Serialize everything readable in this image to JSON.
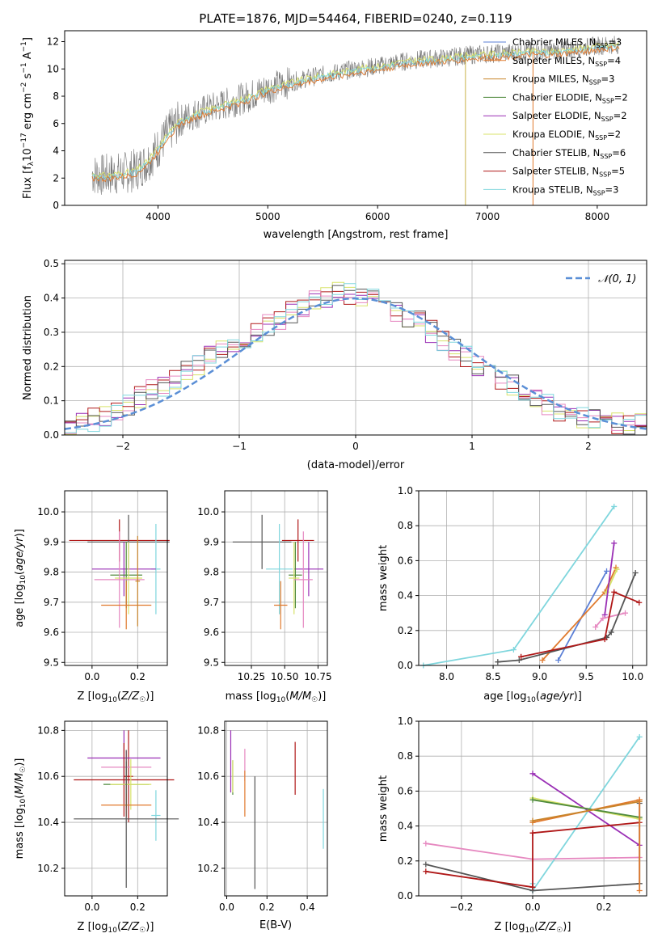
{
  "colors": {
    "chabrier_miles": "#5b7fd6",
    "salpeter_miles": "#e07a2e",
    "kroupa_miles": "#c8842a",
    "chabrier_elodie": "#4f8a3c",
    "salpeter_elodie": "#9a2fb5",
    "kroupa_elodie": "#d8e36a",
    "chabrier_stelib": "#555555",
    "salpeter_stelib": "#b01818",
    "kroupa_stelib": "#7fd6dd",
    "extra_pink": "#e688c0",
    "data": "#777777",
    "normal": "#5b8fd6",
    "grid": "#b0b0b0"
  },
  "panel1": {
    "title": "PLATE=1876, MJD=54464, FIBERID=0240, z=0.119",
    "xlabel": "wavelength [Angstrom, rest frame]",
    "ylabel": "Flux [f_λ 10^-17 erg cm^-2 s^-1 A^-1]",
    "xticks": [
      "4000",
      "5000",
      "6000",
      "7000",
      "8000"
    ],
    "yticks": [
      "0",
      "2",
      "4",
      "6",
      "8",
      "10",
      "12"
    ],
    "legend": [
      {
        "name": "Chabrier MILES, N_SSP=3",
        "color": "#5b7fd6"
      },
      {
        "name": "Salpeter MILES, N_SSP=4",
        "color": "#e07a2e"
      },
      {
        "name": "Kroupa MILES, N_SSP=3",
        "color": "#c8842a"
      },
      {
        "name": "Chabrier ELODIE, N_SSP=2",
        "color": "#4f8a3c"
      },
      {
        "name": "Salpeter ELODIE, N_SSP=2",
        "color": "#9a2fb5"
      },
      {
        "name": "Kroupa ELODIE, N_SSP=2",
        "color": "#d8e36a"
      },
      {
        "name": "Chabrier STELIB, N_SSP=6",
        "color": "#555555"
      },
      {
        "name": "Salpeter STELIB, N_SSP=5",
        "color": "#b01818"
      },
      {
        "name": "Kroupa STELIB, N_SSP=3",
        "color": "#7fd6dd"
      }
    ]
  },
  "panel2": {
    "xlabel": "(data-model)/error",
    "ylabel": "Normed distribution",
    "xticks": [
      "−2",
      "−1",
      "0",
      "1",
      "2"
    ],
    "yticks": [
      "0.0",
      "0.1",
      "0.2",
      "0.3",
      "0.4",
      "0.5"
    ],
    "legend_label": "𝒩(0, 1)"
  },
  "panel3": {
    "xlabel": "Z [log10(Z/Z☉)]",
    "ylabel": "age [log10(age/yr)]",
    "xticks": [
      "0.0",
      "0.2"
    ],
    "yticks": [
      "9.5",
      "9.6",
      "9.7",
      "9.8",
      "9.9",
      "10.0"
    ]
  },
  "panel4": {
    "xlabel": "mass [log10(M/M☉)]",
    "xticks": [
      "10.25",
      "10.50",
      "10.75"
    ],
    "yticks": [
      "9.5",
      "9.6",
      "9.7",
      "9.8",
      "9.9",
      "10.0"
    ]
  },
  "panel5": {
    "xlabel": "age [log10(age/yr)]",
    "ylabel": "mass weight",
    "xticks": [
      "8.0",
      "8.5",
      "9.0",
      "9.5",
      "10.0"
    ],
    "yticks": [
      "0.0",
      "0.2",
      "0.4",
      "0.6",
      "0.8",
      "1.0"
    ]
  },
  "panel6": {
    "xlabel": "Z [log10(Z/Z☉)]",
    "ylabel": "mass [log10(M/M☉)]",
    "xticks": [
      "0.0",
      "0.2"
    ],
    "yticks": [
      "10.2",
      "10.4",
      "10.6",
      "10.8"
    ]
  },
  "panel7": {
    "xlabel": "E(B-V)",
    "xticks": [
      "0.0",
      "0.2",
      "0.4"
    ],
    "yticks": [
      "10.2",
      "10.4",
      "10.6",
      "10.8"
    ]
  },
  "panel8": {
    "xlabel": "Z [log10(Z/Z☉)]",
    "ylabel": "mass weight",
    "xticks": [
      "−0.2",
      "0.0",
      "0.2"
    ],
    "yticks": [
      "0.0",
      "0.2",
      "0.4",
      "0.6",
      "0.8",
      "1.0"
    ]
  },
  "chart_data": [
    {
      "type": "line",
      "title": "PLATE=1876, MJD=54464, FIBERID=0240, z=0.119",
      "xlabel": "wavelength [Angstrom, rest frame]",
      "ylabel": "Flux [f_λ 10^-17 erg cm^-2 s^-1 A^-1]",
      "xlim": [
        3150,
        8450
      ],
      "ylim": [
        0,
        12.8
      ],
      "continuum": {
        "x": [
          3400,
          3500,
          3700,
          3800,
          3900,
          4000,
          4100,
          4200,
          4300,
          4400,
          4600,
          4800,
          5000,
          5200,
          5400,
          5600,
          5800,
          6000,
          6200,
          6400,
          6600,
          6800,
          7000,
          7200,
          7400,
          7600,
          7800,
          8000,
          8200
        ],
        "y": [
          2.3,
          2.2,
          2.4,
          2.6,
          3.2,
          4.2,
          5.4,
          6.2,
          6.6,
          6.9,
          7.4,
          7.9,
          8.6,
          9.0,
          9.4,
          9.7,
          10.0,
          10.2,
          10.5,
          10.7,
          10.8,
          11.0,
          11.1,
          11.2,
          11.3,
          11.3,
          11.5,
          11.7,
          11.8
        ]
      },
      "series": [
        {
          "name": "Chabrier MILES, N_SSP=3"
        },
        {
          "name": "Salpeter MILES, N_SSP=4"
        },
        {
          "name": "Kroupa MILES, N_SSP=3"
        },
        {
          "name": "Chabrier ELODIE, N_SSP=2"
        },
        {
          "name": "Salpeter ELODIE, N_SSP=2"
        },
        {
          "name": "Kroupa ELODIE, N_SSP=2"
        },
        {
          "name": "Chabrier STELIB, N_SSP=6"
        },
        {
          "name": "Salpeter STELIB, N_SSP=5"
        },
        {
          "name": "Kroupa STELIB, N_SSP=3"
        }
      ],
      "grid": false,
      "legend": "right"
    },
    {
      "type": "area",
      "xlabel": "(data-model)/error",
      "ylabel": "Normed distribution",
      "xlim": [
        -2.5,
        2.5
      ],
      "ylim": [
        0,
        0.51
      ],
      "bin_width": 0.1,
      "bins_x": [
        -2.5,
        -2.3,
        -2.1,
        -1.9,
        -1.7,
        -1.5,
        -1.3,
        -1.1,
        -0.9,
        -0.7,
        -0.5,
        -0.3,
        -0.1,
        0.1,
        0.3,
        0.5,
        0.7,
        0.9,
        1.1,
        1.3,
        1.5,
        1.7,
        1.9,
        2.1,
        2.3
      ],
      "bins_y": [
        0.02,
        0.04,
        0.06,
        0.1,
        0.14,
        0.17,
        0.22,
        0.25,
        0.28,
        0.33,
        0.37,
        0.4,
        0.42,
        0.4,
        0.37,
        0.34,
        0.29,
        0.24,
        0.19,
        0.15,
        0.12,
        0.08,
        0.06,
        0.04,
        0.03
      ],
      "normal": {
        "mean": 0,
        "sigma": 1,
        "name": "𝒩(0, 1)"
      },
      "grid": true,
      "legend": "top-right"
    },
    {
      "type": "scatter",
      "xlabel": "Z [log10(Z/Z☉)]",
      "ylabel": "age [log10(age/yr)]",
      "xlim": [
        -0.12,
        0.33
      ],
      "ylim": [
        9.49,
        10.07
      ],
      "points": [
        {
          "x": 0.12,
          "y": 9.905,
          "xerr": 0.22,
          "yerr": 0.07,
          "color": "#b01818"
        },
        {
          "x": 0.16,
          "y": 9.9,
          "xerr": 0.18,
          "yerr": 0.09,
          "color": "#555555"
        },
        {
          "x": 0.28,
          "y": 9.81,
          "xerr": 0.02,
          "yerr": 0.15,
          "color": "#7fd6dd"
        },
        {
          "x": 0.14,
          "y": 9.81,
          "xerr": 0.14,
          "yerr": 0.09,
          "color": "#9a2fb5"
        },
        {
          "x": 0.15,
          "y": 9.79,
          "xerr": 0.07,
          "yerr": 0.11,
          "color": "#4f8a3c"
        },
        {
          "x": 0.16,
          "y": 9.78,
          "xerr": 0.06,
          "yerr": 0.12,
          "color": "#d8e36a"
        },
        {
          "x": 0.12,
          "y": 9.775,
          "xerr": 0.11,
          "yerr": 0.16,
          "color": "#e688c0"
        },
        {
          "x": 0.15,
          "y": 9.69,
          "xerr": 0.11,
          "yerr": 0.08,
          "color": "#e07a2e"
        },
        {
          "x": 0.2,
          "y": 9.77,
          "xerr": 0.01,
          "yerr": 0.15,
          "color": "#c8842a"
        }
      ],
      "grid": true
    },
    {
      "type": "scatter",
      "xlabel": "mass [log10(M/M☉)]",
      "xlim": [
        10.05,
        10.82
      ],
      "ylim": [
        9.49,
        10.07
      ],
      "points": [
        {
          "x": 10.6,
          "y": 9.905,
          "xerr": 0.12,
          "yerr": 0.07,
          "color": "#b01818"
        },
        {
          "x": 10.33,
          "y": 9.9,
          "xerr": 0.22,
          "yerr": 0.09,
          "color": "#555555"
        },
        {
          "x": 10.46,
          "y": 9.81,
          "xerr": 0.1,
          "yerr": 0.15,
          "color": "#7fd6dd"
        },
        {
          "x": 10.68,
          "y": 9.81,
          "xerr": 0.11,
          "yerr": 0.09,
          "color": "#9a2fb5"
        },
        {
          "x": 10.58,
          "y": 9.79,
          "xerr": 0.05,
          "yerr": 0.11,
          "color": "#4f8a3c"
        },
        {
          "x": 10.57,
          "y": 9.78,
          "xerr": 0.04,
          "yerr": 0.12,
          "color": "#d8e36a"
        },
        {
          "x": 10.64,
          "y": 9.775,
          "xerr": 0.07,
          "yerr": 0.16,
          "color": "#e688c0"
        },
        {
          "x": 10.47,
          "y": 9.69,
          "xerr": 0.05,
          "yerr": 0.08,
          "color": "#e07a2e"
        }
      ],
      "grid": true
    },
    {
      "type": "line",
      "xlabel": "age [log10(age/yr)]",
      "ylabel": "mass weight",
      "xlim": [
        7.7,
        10.15
      ],
      "ylim": [
        0,
        1.0
      ],
      "series": [
        {
          "color": "#7fd6dd",
          "x": [
            7.75,
            8.72,
            9.8
          ],
          "y": [
            0.0,
            0.09,
            0.91
          ]
        },
        {
          "color": "#5b7fd6",
          "x": [
            9.2,
            9.72
          ],
          "y": [
            0.03,
            0.54
          ]
        },
        {
          "color": "#e07a2e",
          "x": [
            9.03,
            9.7,
            9.82
          ],
          "y": [
            0.03,
            0.42,
            0.56
          ]
        },
        {
          "color": "#d8e36a",
          "x": [
            9.72,
            9.83
          ],
          "y": [
            0.42,
            0.55
          ]
        },
        {
          "color": "#9a2fb5",
          "x": [
            9.7,
            9.8
          ],
          "y": [
            0.29,
            0.7
          ]
        },
        {
          "color": "#e688c0",
          "x": [
            9.6,
            9.68,
            9.92
          ],
          "y": [
            0.22,
            0.27,
            0.3
          ]
        },
        {
          "color": "#555555",
          "x": [
            8.55,
            8.78,
            9.72,
            9.77,
            10.03
          ],
          "y": [
            0.02,
            0.03,
            0.16,
            0.19,
            0.53
          ]
        },
        {
          "color": "#b01818",
          "x": [
            8.8,
            9.7,
            9.8,
            10.07
          ],
          "y": [
            0.05,
            0.15,
            0.42,
            0.36
          ]
        }
      ],
      "grid": true
    },
    {
      "type": "scatter",
      "xlabel": "Z [log10(Z/Z☉)]",
      "ylabel": "mass [log10(M/M☉)]",
      "xlim": [
        -0.12,
        0.33
      ],
      "ylim": [
        10.08,
        10.84
      ],
      "points": [
        {
          "x": 0.16,
          "y": 10.6,
          "xerr": 0.02,
          "yerr": 0.2,
          "color": "#b01818"
        },
        {
          "x": 0.14,
          "y": 10.68,
          "xerr": 0.16,
          "yerr": 0.12,
          "color": "#9a2fb5"
        },
        {
          "x": 0.15,
          "y": 10.64,
          "xerr": 0.11,
          "yerr": 0.07,
          "color": "#e688c0"
        },
        {
          "x": 0.14,
          "y": 10.585,
          "xerr": 0.22,
          "yerr": 0.16,
          "color": "#b01818"
        },
        {
          "x": 0.15,
          "y": 10.565,
          "xerr": 0.1,
          "yerr": 0.1,
          "color": "#4f8a3c"
        },
        {
          "x": 0.17,
          "y": 10.565,
          "xerr": 0.09,
          "yerr": 0.11,
          "color": "#d8e36a"
        },
        {
          "x": 0.15,
          "y": 10.475,
          "xerr": 0.11,
          "yerr": 0.05,
          "color": "#e07a2e"
        },
        {
          "x": 0.28,
          "y": 10.43,
          "xerr": 0.02,
          "yerr": 0.11,
          "color": "#7fd6dd"
        },
        {
          "x": 0.15,
          "y": 10.415,
          "xerr": 0.23,
          "yerr": 0.3,
          "color": "#555555"
        }
      ],
      "grid": true
    },
    {
      "type": "scatter",
      "xlabel": "E(B-V)",
      "xlim": [
        -0.01,
        0.5
      ],
      "ylim": [
        10.08,
        10.84
      ],
      "points": [
        {
          "x": 0.02,
          "y": 10.665,
          "yerr": 0.135,
          "color": "#9a2fb5"
        },
        {
          "x": 0.03,
          "y": 10.595,
          "yerr": 0.075,
          "color": "#4f8a3c"
        },
        {
          "x": 0.03,
          "y": 10.6,
          "yerr": 0.07,
          "color": "#d8e36a"
        },
        {
          "x": 0.09,
          "y": 10.65,
          "yerr": 0.07,
          "color": "#e688c0"
        },
        {
          "x": 0.09,
          "y": 10.525,
          "yerr": 0.1,
          "color": "#e07a2e"
        },
        {
          "x": 0.14,
          "y": 10.355,
          "yerr": 0.245,
          "color": "#555555"
        },
        {
          "x": 0.34,
          "y": 10.635,
          "yerr": 0.115,
          "color": "#b01818"
        },
        {
          "x": 0.48,
          "y": 10.415,
          "yerr": 0.13,
          "color": "#7fd6dd"
        }
      ],
      "grid": true
    },
    {
      "type": "line",
      "xlabel": "Z [log10(Z/Z☉)]",
      "ylabel": "mass weight",
      "xlim": [
        -0.32,
        0.32
      ],
      "ylim": [
        0,
        1.0
      ],
      "series": [
        {
          "color": "#7fd6dd",
          "x": [
            0.0,
            0.3
          ],
          "y": [
            0.03,
            0.91
          ]
        },
        {
          "color": "#7fd6dd",
          "x": [
            0.0,
            0.0
          ],
          "y": [
            0.03,
            0.07
          ]
        },
        {
          "color": "#9a2fb5",
          "x": [
            0.0,
            0.3
          ],
          "y": [
            0.7,
            0.29
          ]
        },
        {
          "color": "#d8e36a",
          "x": [
            0.0,
            0.3
          ],
          "y": [
            0.56,
            0.44
          ]
        },
        {
          "color": "#4f8a3c",
          "x": [
            0.0,
            0.3
          ],
          "y": [
            0.55,
            0.45
          ]
        },
        {
          "color": "#e07a2e",
          "x": [
            0.0,
            0.3
          ],
          "y": [
            0.42,
            0.55
          ]
        },
        {
          "color": "#c8842a",
          "x": [
            0.0,
            0.3
          ],
          "y": [
            0.43,
            0.54
          ]
        },
        {
          "color": "#b01818",
          "x": [
            0.0,
            0.3
          ],
          "y": [
            0.36,
            0.42
          ]
        },
        {
          "color": "#e688c0",
          "x": [
            -0.3,
            0.0,
            0.3
          ],
          "y": [
            0.3,
            0.21,
            0.22
          ]
        },
        {
          "color": "#555555",
          "x": [
            -0.3,
            0.0,
            0.3
          ],
          "y": [
            0.18,
            0.03,
            0.07
          ]
        },
        {
          "color": "#555555",
          "x": [
            0.3,
            0.3
          ],
          "y": [
            0.07,
            0.53
          ]
        },
        {
          "color": "#b01818",
          "x": [
            -0.3,
            0.0
          ],
          "y": [
            0.14,
            0.05
          ]
        },
        {
          "color": "#b01818",
          "x": [
            0.0,
            0.0
          ],
          "y": [
            0.05,
            0.36
          ]
        },
        {
          "color": "#e07a2e",
          "x": [
            0.3,
            0.3
          ],
          "y": [
            0.03,
            0.55
          ]
        }
      ],
      "grid": true
    }
  ]
}
